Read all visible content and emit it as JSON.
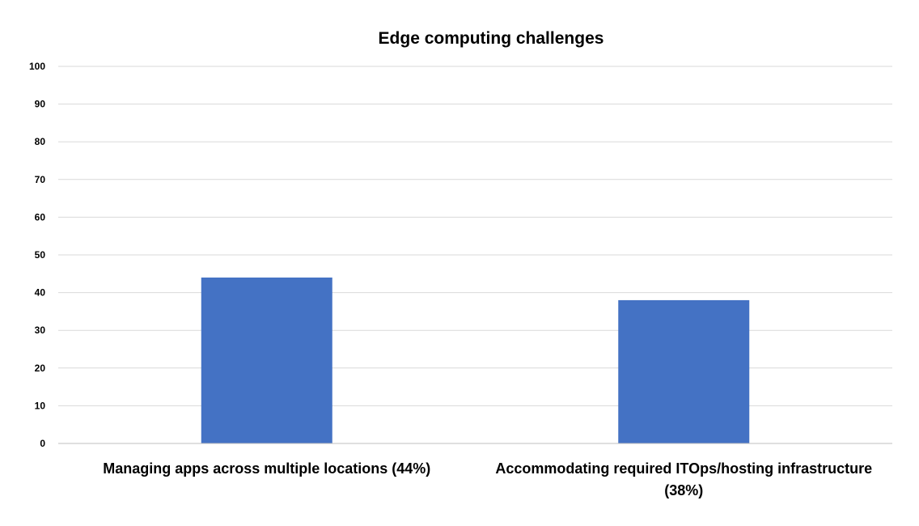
{
  "chart_data": {
    "type": "bar",
    "title": "Edge computing challenges",
    "categories": [
      [
        "Managing apps across multiple locations (44%)"
      ],
      [
        "Accommodating required ITOps/hosting infrastructure",
        "(38%)"
      ]
    ],
    "values": [
      44,
      38
    ],
    "ylim": [
      0,
      100
    ],
    "yticks": [
      0,
      10,
      20,
      30,
      40,
      50,
      60,
      70,
      80,
      90,
      100
    ],
    "xlabel": "",
    "ylabel": "",
    "grid": true,
    "legend": "none",
    "bar_color": "#4472c4"
  }
}
